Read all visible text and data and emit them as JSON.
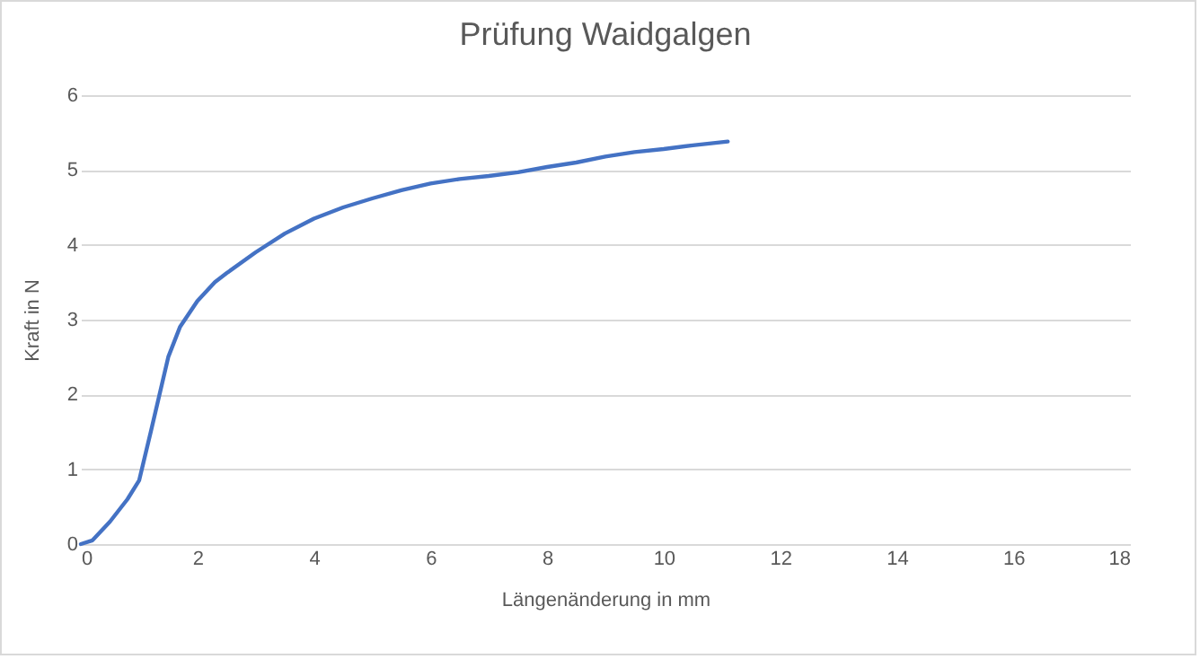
{
  "chart_data": {
    "type": "line",
    "title": "Prüfung Waidgalgen",
    "xlabel": "Längenänderung in mm",
    "ylabel": "Kraft in N",
    "x": [
      0,
      0.2,
      0.5,
      0.8,
      1.0,
      1.2,
      1.5,
      1.7,
      2.0,
      2.3,
      2.5,
      3.0,
      3.5,
      4.0,
      4.5,
      5.0,
      5.5,
      6.0,
      6.5,
      7.0,
      7.5,
      8.0,
      8.5,
      9.0,
      9.5,
      10.0,
      10.5,
      11.1
    ],
    "series": [
      {
        "color": "#4472c4",
        "values": [
          0,
          0.05,
          0.3,
          0.6,
          0.85,
          1.5,
          2.5,
          2.9,
          3.25,
          3.5,
          3.62,
          3.9,
          4.15,
          4.35,
          4.5,
          4.62,
          4.73,
          4.82,
          4.88,
          4.92,
          4.97,
          5.04,
          5.1,
          5.18,
          5.24,
          5.28,
          5.33,
          5.38
        ]
      }
    ],
    "xlim": [
      0,
      18
    ],
    "xticks": [
      0,
      2,
      4,
      6,
      8,
      10,
      12,
      14,
      16,
      18
    ],
    "ylim": [
      0,
      6
    ],
    "yticks": [
      0,
      1,
      2,
      3,
      4,
      5,
      6
    ],
    "grid": "y",
    "line_style": "solid"
  }
}
